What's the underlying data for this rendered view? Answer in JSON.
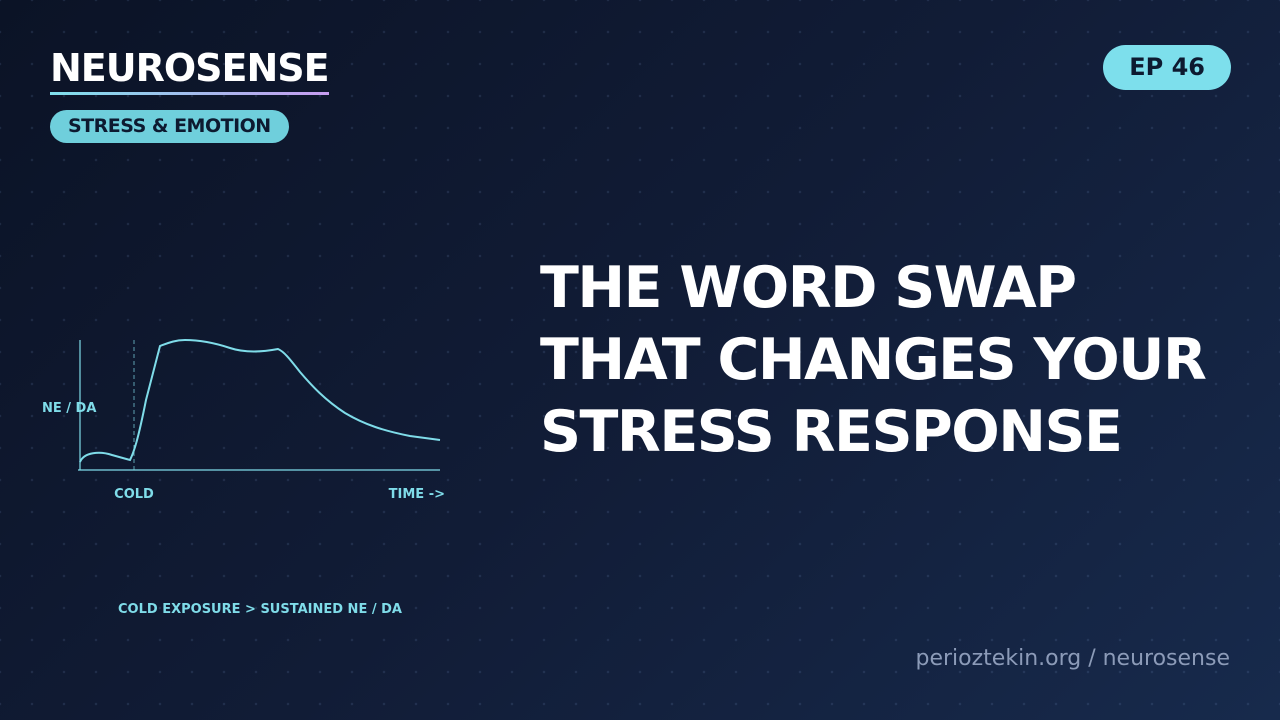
{
  "brand": {
    "name": "NEUROSENSE",
    "category": "STRESS & EMOTION"
  },
  "episode": "EP 46",
  "headline": [
    "THE WORD SWAP",
    "THAT CHANGES YOUR",
    "STRESS RESPONSE"
  ],
  "illustration": {
    "y_label": "NE / DA",
    "marker_label": "COLD",
    "x_label": "TIME ->",
    "caption": "COLD EXPOSURE > SUSTAINED NE / DA"
  },
  "footer": "perioztekin.org / neurosense"
}
